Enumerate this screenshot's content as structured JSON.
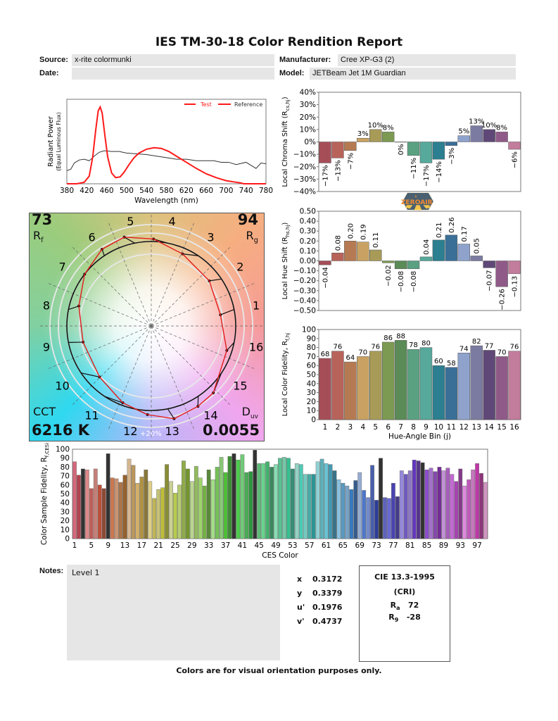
{
  "header": {
    "title": "IES TM-30-18 Color Rendition Report",
    "source_label": "Source:",
    "source_value": "x-rite colormunki",
    "date_label": "Date:",
    "date_value": "",
    "manufacturer_label": "Manufacturer:",
    "manufacturer_value": "Cree XP-G3 (2)",
    "model_label": "Model:",
    "model_value": "JETBeam Jet 1M Guardian"
  },
  "logo": {
    "text": "ZEROAIR",
    "suffix": ".com",
    "colors": {
      "badge": "#4a6070",
      "orange": "#f08a30",
      "yellow": "#f5c64a"
    }
  },
  "vector_graphic": {
    "rf_value": "73",
    "rf_label": "R",
    "rf_sub": "f",
    "rg_value": "94",
    "rg_label": "R",
    "rg_sub": "g",
    "cct_label": "CCT",
    "cct_value": "6216 K",
    "duv_label": "D",
    "duv_sub": "uv",
    "duv_value": "0.0055",
    "ring_label": "+20%"
  },
  "chart_data": [
    {
      "type": "line",
      "xlabel": "Wavelength (nm)",
      "ylabel": "Radiant Power",
      "ylabel2": "(Equal Luminous Flux)",
      "xlim": [
        380,
        780
      ],
      "xticks": [
        380,
        420,
        460,
        500,
        540,
        580,
        620,
        660,
        700,
        740,
        780
      ],
      "legend": "top-right",
      "series": [
        {
          "name": "Test",
          "color": "#ff1a1a",
          "points": [
            [
              380,
              0
            ],
            [
              400,
              0
            ],
            [
              415,
              0.02
            ],
            [
              425,
              0.1
            ],
            [
              432,
              0.35
            ],
            [
              438,
              0.7
            ],
            [
              443,
              0.95
            ],
            [
              447,
              1.0
            ],
            [
              451,
              0.92
            ],
            [
              456,
              0.65
            ],
            [
              462,
              0.35
            ],
            [
              470,
              0.14
            ],
            [
              478,
              0.08
            ],
            [
              487,
              0.09
            ],
            [
              495,
              0.15
            ],
            [
              505,
              0.25
            ],
            [
              515,
              0.34
            ],
            [
              525,
              0.4
            ],
            [
              540,
              0.45
            ],
            [
              555,
              0.47
            ],
            [
              570,
              0.46
            ],
            [
              585,
              0.42
            ],
            [
              600,
              0.36
            ],
            [
              620,
              0.28
            ],
            [
              640,
              0.2
            ],
            [
              660,
              0.13
            ],
            [
              680,
              0.08
            ],
            [
              700,
              0.04
            ],
            [
              720,
              0.02
            ],
            [
              730,
              0.01
            ],
            [
              735,
              0
            ],
            [
              780,
              0
            ]
          ]
        },
        {
          "name": "Reference",
          "color": "#333333",
          "points": [
            [
              380,
              0.17
            ],
            [
              388,
              0.19
            ],
            [
              395,
              0.27
            ],
            [
              405,
              0.31
            ],
            [
              415,
              0.32
            ],
            [
              425,
              0.3
            ],
            [
              435,
              0.36
            ],
            [
              445,
              0.41
            ],
            [
              455,
              0.43
            ],
            [
              470,
              0.42
            ],
            [
              485,
              0.42
            ],
            [
              500,
              0.4
            ],
            [
              520,
              0.39
            ],
            [
              540,
              0.38
            ],
            [
              560,
              0.36
            ],
            [
              580,
              0.34
            ],
            [
              600,
              0.32
            ],
            [
              620,
              0.32
            ],
            [
              640,
              0.3
            ],
            [
              660,
              0.3
            ],
            [
              675,
              0.3
            ],
            [
              690,
              0.28
            ],
            [
              705,
              0.28
            ],
            [
              720,
              0.25
            ],
            [
              740,
              0.28
            ],
            [
              760,
              0.2
            ],
            [
              770,
              0.27
            ],
            [
              780,
              0.26
            ]
          ]
        }
      ]
    },
    {
      "type": "bar",
      "ylabel": "Local Chroma Shift (R",
      "ylabel_sub": "cs,hj",
      "ylabel_end": ")",
      "ylim": [
        -40,
        40
      ],
      "yticks": [
        "40%",
        "30%",
        "20%",
        "10%",
        "0%",
        "-10%",
        "-20%",
        "-30%",
        "-40%"
      ],
      "categories": [
        1,
        2,
        3,
        4,
        5,
        6,
        7,
        8,
        9,
        10,
        11,
        12,
        13,
        14,
        15,
        16
      ],
      "values": [
        -17,
        -13,
        -7,
        3,
        10,
        8,
        0,
        -11,
        -17,
        -14,
        -3,
        5,
        13,
        10,
        8,
        -6
      ],
      "labels": [
        "-17%",
        "-13%",
        "-7%",
        "3%",
        "10%",
        "8%",
        "0%",
        "-11%",
        "-17%",
        "-14%",
        "-3%",
        "5%",
        "13%",
        "10%",
        "8%",
        "-6%"
      ]
    },
    {
      "type": "bar",
      "ylabel": "Local Hue Shift (R",
      "ylabel_sub": "hs,hj",
      "ylabel_end": ")",
      "ylim": [
        -0.5,
        0.5
      ],
      "yticks": [
        "0.50",
        "0.40",
        "0.30",
        "0.20",
        "0.10",
        "0.00",
        "-0.10",
        "-0.20",
        "-0.30",
        "-0.40",
        "-0.50"
      ],
      "categories": [
        1,
        2,
        3,
        4,
        5,
        6,
        7,
        8,
        9,
        10,
        11,
        12,
        13,
        14,
        15,
        16
      ],
      "values": [
        -0.04,
        0.08,
        0.2,
        0.19,
        0.11,
        -0.02,
        -0.08,
        -0.08,
        0.04,
        0.21,
        0.26,
        0.17,
        0.05,
        -0.07,
        -0.26,
        -0.13
      ],
      "labels": [
        "-0.04",
        "0.08",
        "0.20",
        "0.19",
        "0.11",
        "-0.02",
        "-0.08",
        "-0.08",
        "0.04",
        "0.21",
        "0.26",
        "0.17",
        "0.05",
        "-0.07",
        "-0.26",
        "-0.13"
      ]
    },
    {
      "type": "bar",
      "ylabel": "Local Color Fidelity, R",
      "ylabel_sub": "f,hj",
      "ylabel_end": "",
      "xlabel": "Hue-Angle Bin (j)",
      "ylim": [
        0,
        100
      ],
      "yticks": [
        "100",
        "90",
        "80",
        "70",
        "60",
        "50",
        "40",
        "30",
        "20",
        "10",
        "0"
      ],
      "categories": [
        "1",
        "2",
        "3",
        "4",
        "5",
        "6",
        "7",
        "8",
        "9",
        "10",
        "11",
        "12",
        "13",
        "14",
        "15",
        "16"
      ],
      "values": [
        68,
        76,
        64,
        70,
        76,
        86,
        88,
        78,
        80,
        60,
        58,
        74,
        82,
        77,
        70,
        76
      ]
    },
    {
      "type": "bar",
      "ylabel": "Color Sample Fidelity, R",
      "ylabel_sub": "f,CESi",
      "xlabel": "CES Color",
      "ylim": [
        0,
        100
      ],
      "yticks": [
        "100",
        "90",
        "80",
        "70",
        "60",
        "50",
        "40",
        "30",
        "20",
        "10",
        "0"
      ],
      "xticks": [
        "1",
        "5",
        "9",
        "13",
        "17",
        "21",
        "25",
        "29",
        "33",
        "37",
        "41",
        "45",
        "49",
        "53",
        "57",
        "61",
        "65",
        "69",
        "73",
        "77",
        "81",
        "85",
        "89",
        "93",
        "97"
      ],
      "values": [
        86,
        71,
        78,
        77,
        56,
        78,
        60,
        56,
        95,
        68,
        67,
        63,
        71,
        89,
        82,
        62,
        69,
        77,
        64,
        45,
        55,
        57,
        83,
        64,
        51,
        60,
        87,
        78,
        64,
        81,
        68,
        59,
        77,
        66,
        80,
        91,
        74,
        92,
        95,
        88,
        94,
        74,
        75,
        99,
        84,
        84,
        86,
        80,
        83,
        90,
        91,
        90,
        78,
        84,
        83,
        72,
        72,
        72,
        86,
        89,
        84,
        83,
        76,
        66,
        62,
        59,
        55,
        65,
        74,
        54,
        46,
        82,
        43,
        90,
        46,
        45,
        62,
        47,
        76,
        72,
        76,
        88,
        87,
        85,
        77,
        79,
        75,
        80,
        76,
        79,
        72,
        64,
        78,
        59,
        66,
        77,
        84,
        73,
        63
      ]
    }
  ],
  "bin_colors": [
    "#a64e58",
    "#b8635a",
    "#b67a52",
    "#c9a263",
    "#a89b58",
    "#7c9a52",
    "#5b8b57",
    "#5aa182",
    "#56a99b",
    "#2b7f90",
    "#3a6f98",
    "#8ea2cc",
    "#7b7ba2",
    "#5f4878",
    "#905a88",
    "#c27c9c"
  ],
  "notes": {
    "label": "Notes:",
    "value": "Level 1"
  },
  "chromaticity": [
    {
      "label": "x",
      "value": "0.3172"
    },
    {
      "label": "y",
      "value": "0.3379"
    },
    {
      "label": "u'",
      "value": "0.1976"
    },
    {
      "label": "v'",
      "value": "0.4737"
    }
  ],
  "cri": {
    "title": "CIE 13.3-1995",
    "subtitle": "(CRI)",
    "ra_label": "R",
    "ra_sub": "a",
    "ra_value": "72",
    "r9_label": "R",
    "r9_sub": "9",
    "r9_value": "-28"
  },
  "footer": "Colors are for visual orientation purposes only."
}
